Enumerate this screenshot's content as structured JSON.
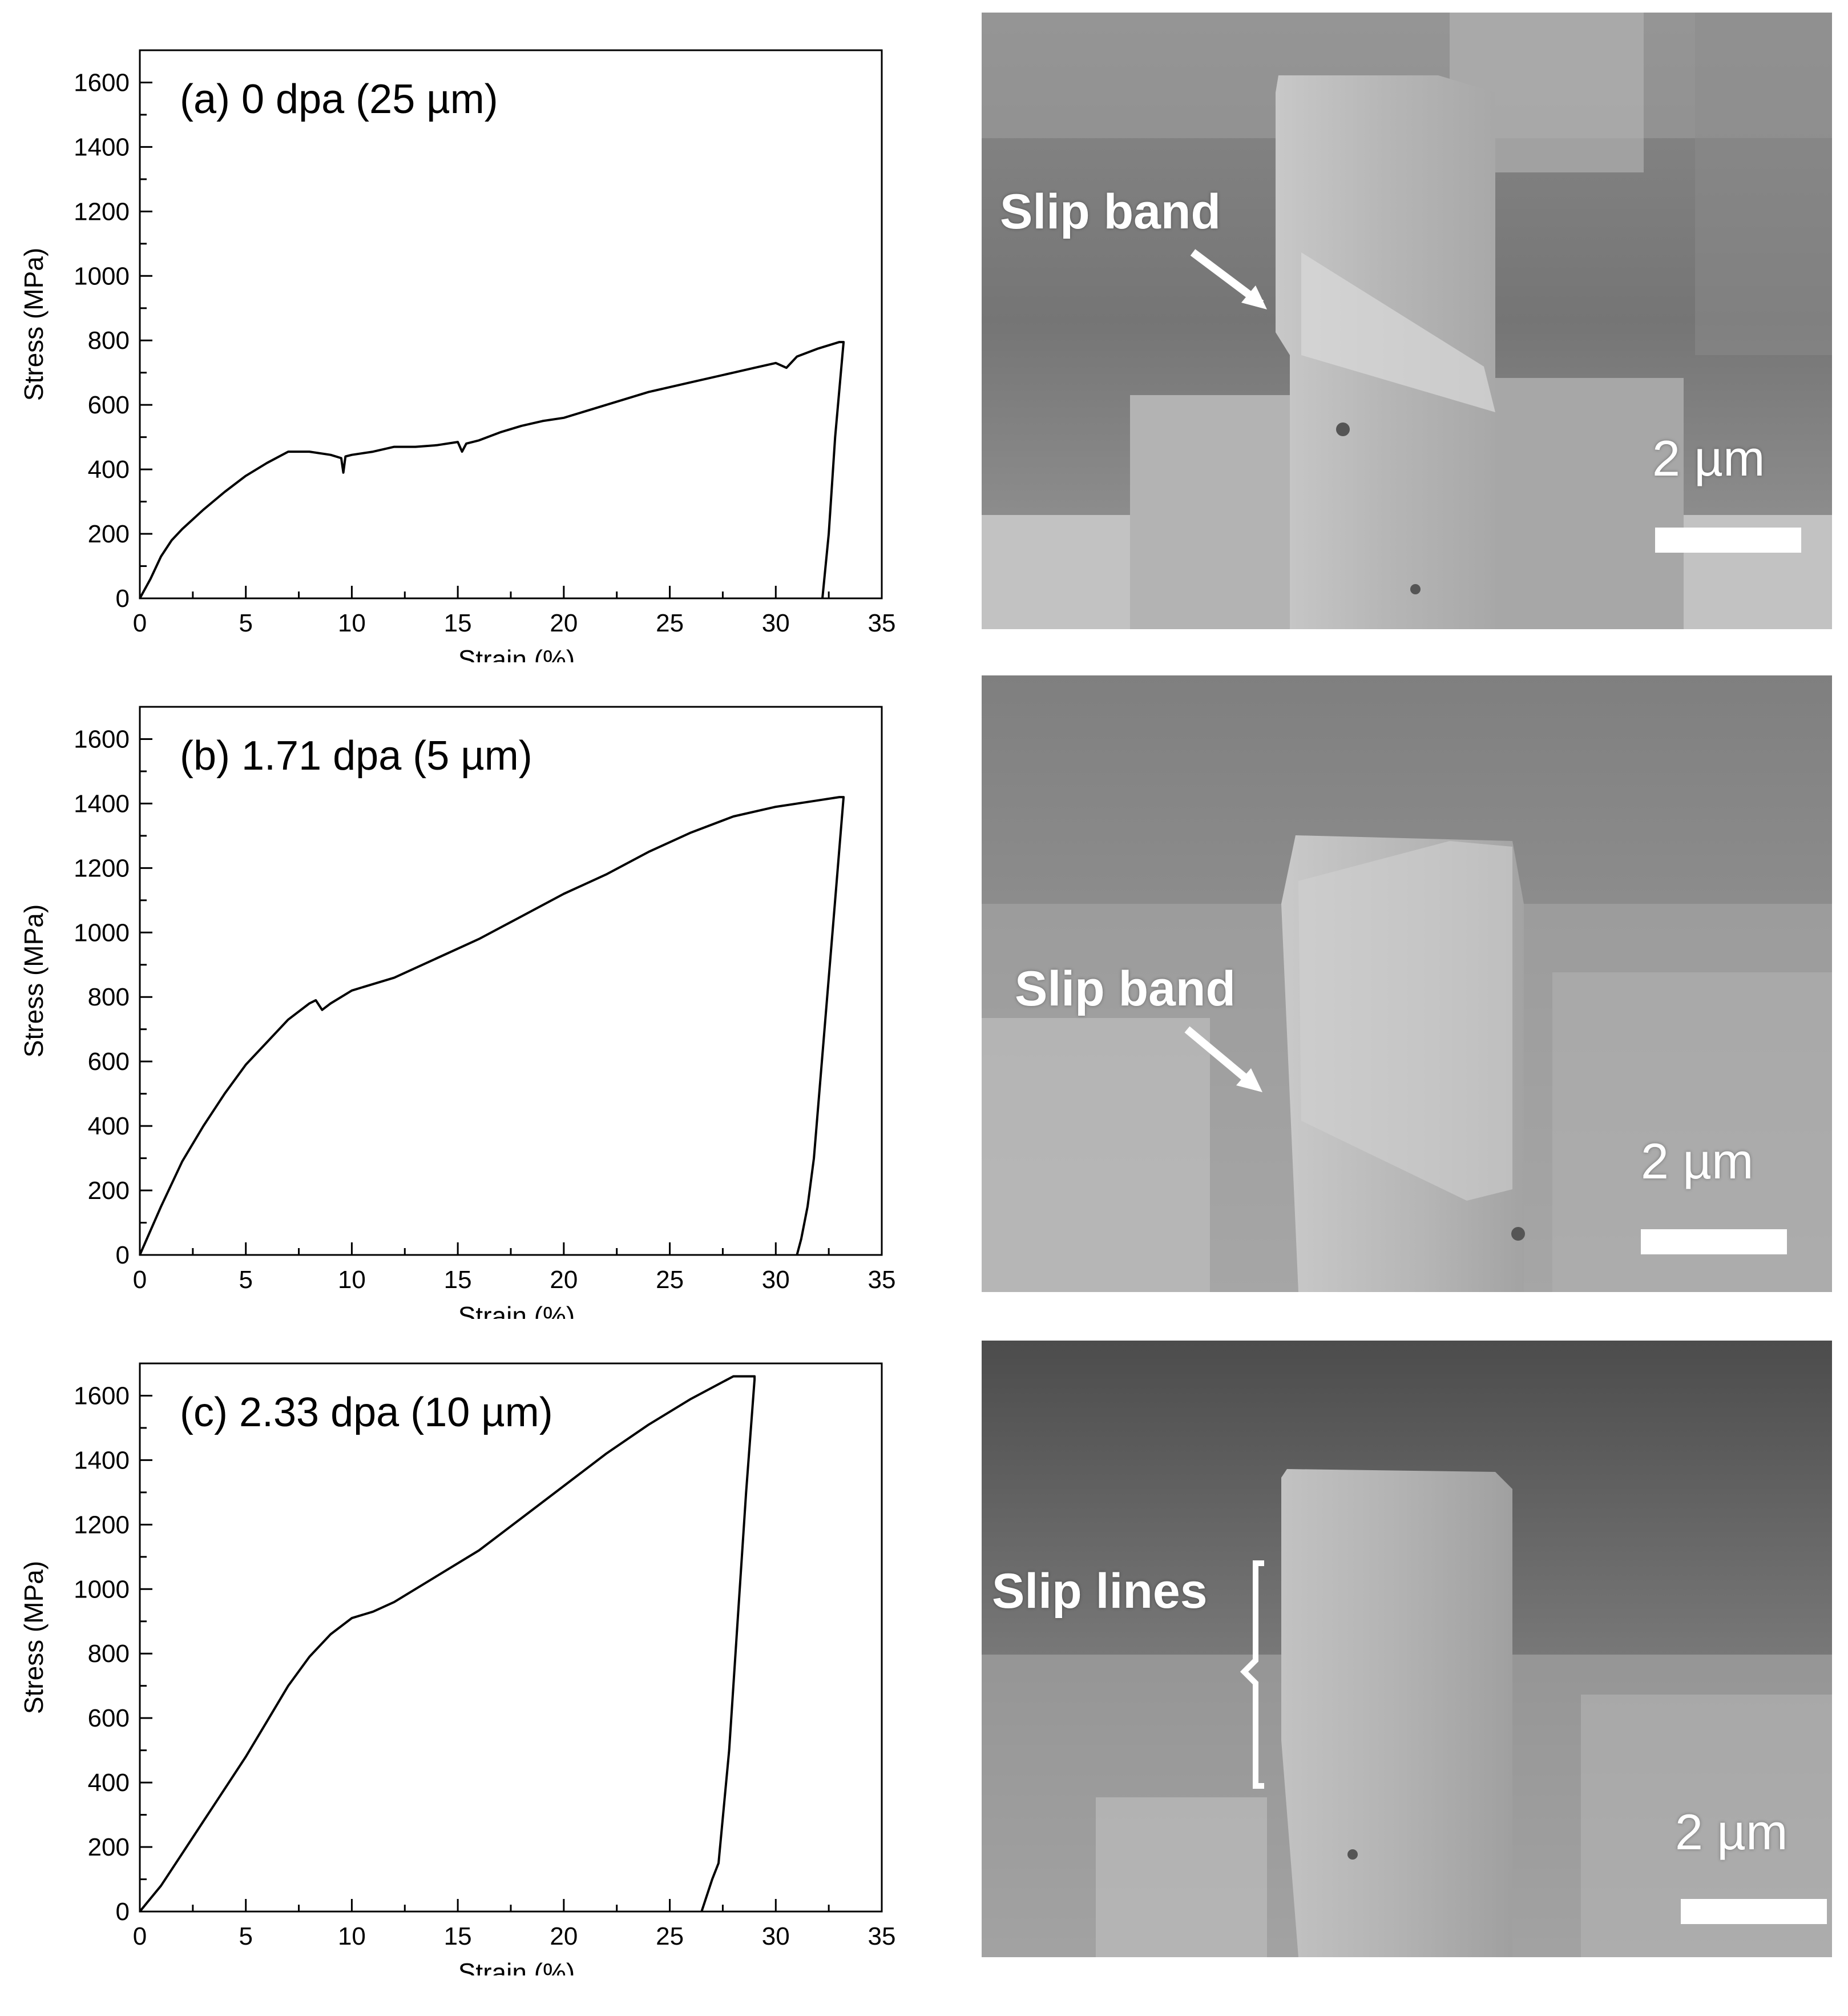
{
  "chart_data": [
    {
      "type": "line",
      "label": "(a) 0 dpa (25 µm)",
      "xlabel": "Strain (%)",
      "ylabel": "Stress (MPa)",
      "xlim": [
        0,
        35
      ],
      "ylim": [
        0,
        1700
      ],
      "xticks": [
        0,
        5,
        10,
        15,
        20,
        25,
        30,
        35
      ],
      "yticks": [
        0,
        200,
        400,
        600,
        800,
        1000,
        1200,
        1400,
        1600
      ],
      "grid": false,
      "series": [
        {
          "x": [
            0,
            0.5,
            1,
            1.5,
            2,
            3,
            4,
            5,
            6,
            7,
            8,
            9,
            9.5,
            9.6,
            9.7,
            10,
            11,
            12,
            13,
            14,
            15,
            15.2,
            15.4,
            16,
            17,
            18,
            19,
            20,
            22,
            24,
            26,
            28,
            29,
            30,
            30.5,
            31,
            32,
            33,
            33.2,
            32.8,
            32.5,
            32.2
          ],
          "y": [
            0,
            60,
            130,
            180,
            215,
            275,
            330,
            380,
            420,
            455,
            455,
            445,
            435,
            390,
            440,
            445,
            455,
            470,
            470,
            475,
            485,
            455,
            480,
            490,
            515,
            535,
            550,
            560,
            600,
            640,
            670,
            700,
            715,
            730,
            715,
            750,
            775,
            795,
            795,
            500,
            200,
            0
          ]
        }
      ]
    },
    {
      "type": "line",
      "label": "(b) 1.71 dpa (5 µm)",
      "xlabel": "Strain (%)",
      "ylabel": "Stress (MPa)",
      "xlim": [
        0,
        35
      ],
      "ylim": [
        0,
        1700
      ],
      "xticks": [
        0,
        5,
        10,
        15,
        20,
        25,
        30,
        35
      ],
      "yticks": [
        0,
        200,
        400,
        600,
        800,
        1000,
        1200,
        1400,
        1600
      ],
      "grid": false,
      "series": [
        {
          "x": [
            0,
            1,
            2,
            3,
            4,
            5,
            6,
            7,
            8,
            8.3,
            8.6,
            9,
            10,
            12,
            14,
            16,
            18,
            20,
            22,
            24,
            26,
            28,
            30,
            32,
            33,
            33.2,
            32.8,
            32.3,
            31.8,
            31.5,
            31.2,
            31
          ],
          "y": [
            0,
            150,
            290,
            400,
            500,
            590,
            660,
            730,
            780,
            790,
            760,
            780,
            820,
            860,
            920,
            980,
            1050,
            1120,
            1180,
            1250,
            1310,
            1360,
            1390,
            1410,
            1420,
            1420,
            1100,
            700,
            300,
            150,
            50,
            0
          ]
        }
      ]
    },
    {
      "type": "line",
      "label": "(c) 2.33 dpa (10 µm)",
      "xlabel": "Strain (%)",
      "ylabel": "Stress (MPa)",
      "xlim": [
        0,
        35
      ],
      "ylim": [
        0,
        1700
      ],
      "xticks": [
        0,
        5,
        10,
        15,
        20,
        25,
        30,
        35
      ],
      "yticks": [
        0,
        200,
        400,
        600,
        800,
        1000,
        1200,
        1400,
        1600
      ],
      "grid": false,
      "series": [
        {
          "x": [
            0,
            1,
            2,
            3,
            4,
            5,
            6,
            7,
            8,
            9,
            10,
            11,
            12,
            14,
            16,
            18,
            20,
            22,
            24,
            26,
            28,
            29,
            29,
            28.6,
            28.2,
            27.8,
            27.3,
            27,
            26.5
          ],
          "y": [
            0,
            80,
            180,
            280,
            380,
            480,
            590,
            700,
            790,
            860,
            910,
            930,
            960,
            1040,
            1120,
            1220,
            1320,
            1420,
            1510,
            1590,
            1660,
            1660,
            1650,
            1300,
            900,
            500,
            150,
            100,
            0
          ]
        }
      ]
    }
  ],
  "images": [
    {
      "annotation": "Slip band",
      "scale_bar": "2 µm"
    },
    {
      "annotation": "Slip band",
      "scale_bar": "2 µm"
    },
    {
      "annotation": "Slip lines",
      "scale_bar": "2 µm"
    }
  ]
}
